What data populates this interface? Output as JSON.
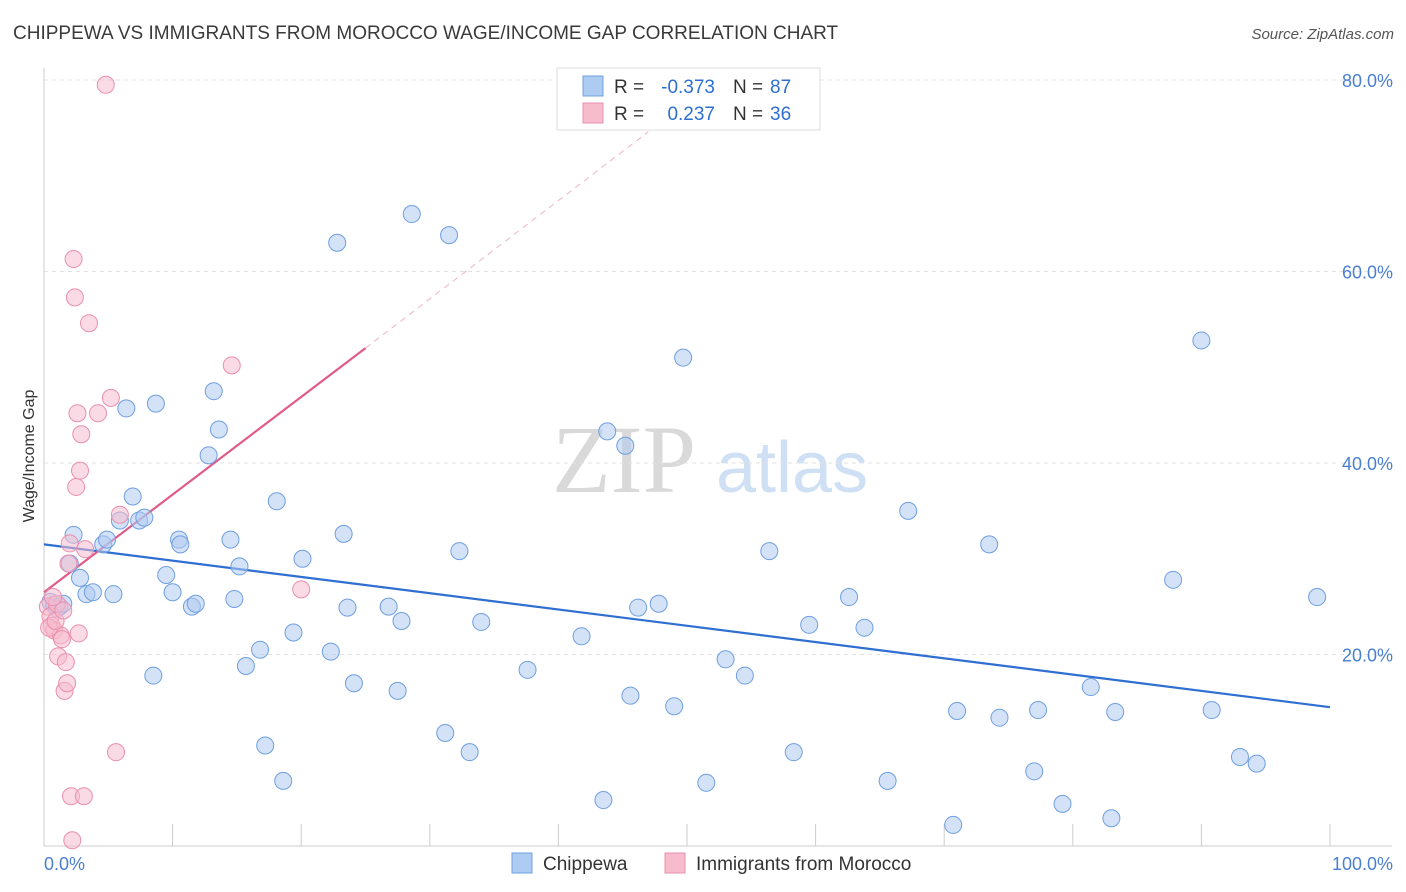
{
  "title": "CHIPPEWA VS IMMIGRANTS FROM MOROCCO WAGE/INCOME GAP CORRELATION CHART",
  "source": "Source: ZipAtlas.com",
  "watermark": {
    "zip": "ZIP",
    "atlas": "atlas"
  },
  "legend_box": {
    "rows": [
      {
        "r_label": "R =",
        "r_value": "-0.373",
        "n_label": "N =",
        "n_value": "87",
        "color": "#aecbf1"
      },
      {
        "r_label": "R =",
        "r_value": "0.237",
        "n_label": "N =",
        "n_value": "36",
        "color": "#f6bccd"
      }
    ]
  },
  "chart_data": {
    "type": "scatter",
    "title": "CHIPPEWA VS IMMIGRANTS FROM MOROCCO WAGE/INCOME GAP CORRELATION CHART",
    "xlabel": "",
    "ylabel": "Wage/Income Gap",
    "xlim": [
      0,
      100
    ],
    "ylim": [
      0,
      80
    ],
    "x_tick_labels": [
      "0.0%",
      "100.0%"
    ],
    "y_ticks": [
      20,
      40,
      60,
      80
    ],
    "y_tick_labels": [
      "20.0%",
      "40.0%",
      "60.0%",
      "80.0%"
    ],
    "grid": true,
    "legend_position": "bottom-center",
    "series": [
      {
        "name": "Chippewa",
        "color": "#aecbf1",
        "edge": "#6f9fe0",
        "trend_color": "#2e6fd1",
        "trend": {
          "x0": 0,
          "y0": 31.5,
          "x1": 100,
          "y1": 14.5
        },
        "points": [
          [
            0.5,
            25.5
          ],
          [
            0.8,
            25.2
          ],
          [
            1.0,
            24.8
          ],
          [
            1.2,
            25.0
          ],
          [
            1.5,
            25.3
          ],
          [
            2.0,
            29.5
          ],
          [
            2.3,
            32.5
          ],
          [
            2.8,
            28.0
          ],
          [
            3.3,
            26.3
          ],
          [
            3.8,
            26.5
          ],
          [
            4.6,
            31.5
          ],
          [
            4.9,
            32.0
          ],
          [
            5.4,
            26.3
          ],
          [
            5.9,
            34.0
          ],
          [
            6.4,
            45.7
          ],
          [
            6.9,
            36.5
          ],
          [
            7.4,
            34.0
          ],
          [
            7.8,
            34.3
          ],
          [
            8.5,
            17.8
          ],
          [
            8.7,
            46.2
          ],
          [
            9.5,
            28.3
          ],
          [
            10.0,
            26.5
          ],
          [
            10.5,
            32.0
          ],
          [
            10.6,
            31.5
          ],
          [
            11.5,
            25.0
          ],
          [
            11.8,
            25.3
          ],
          [
            12.8,
            40.8
          ],
          [
            13.2,
            47.5
          ],
          [
            13.6,
            43.5
          ],
          [
            14.5,
            32.0
          ],
          [
            14.8,
            25.8
          ],
          [
            15.2,
            29.2
          ],
          [
            15.7,
            18.8
          ],
          [
            16.8,
            20.5
          ],
          [
            17.2,
            10.5
          ],
          [
            18.1,
            36.0
          ],
          [
            18.6,
            6.8
          ],
          [
            19.4,
            22.3
          ],
          [
            20.1,
            30.0
          ],
          [
            22.3,
            20.3
          ],
          [
            22.8,
            63.0
          ],
          [
            23.3,
            32.6
          ],
          [
            23.6,
            24.9
          ],
          [
            24.1,
            17.0
          ],
          [
            26.8,
            25.0
          ],
          [
            27.5,
            16.2
          ],
          [
            27.8,
            23.5
          ],
          [
            28.6,
            66.0
          ],
          [
            31.2,
            11.8
          ],
          [
            31.5,
            63.8
          ],
          [
            32.3,
            30.8
          ],
          [
            33.1,
            9.8
          ],
          [
            34.0,
            23.4
          ],
          [
            37.6,
            18.4
          ],
          [
            41.8,
            21.9
          ],
          [
            43.5,
            4.8
          ],
          [
            43.8,
            43.3
          ],
          [
            45.2,
            41.8
          ],
          [
            45.6,
            15.7
          ],
          [
            46.2,
            24.9
          ],
          [
            47.8,
            25.3
          ],
          [
            49.0,
            14.6
          ],
          [
            49.7,
            51.0
          ],
          [
            51.5,
            6.6
          ],
          [
            53.0,
            19.5
          ],
          [
            54.5,
            17.8
          ],
          [
            56.4,
            30.8
          ],
          [
            58.3,
            9.8
          ],
          [
            59.5,
            23.1
          ],
          [
            62.6,
            26.0
          ],
          [
            63.8,
            22.8
          ],
          [
            65.6,
            6.8
          ],
          [
            67.2,
            35.0
          ],
          [
            70.7,
            2.2
          ],
          [
            71.0,
            14.1
          ],
          [
            73.5,
            31.5
          ],
          [
            74.3,
            13.4
          ],
          [
            77.0,
            7.8
          ],
          [
            77.3,
            14.2
          ],
          [
            79.2,
            4.4
          ],
          [
            81.4,
            16.6
          ],
          [
            83.0,
            2.9
          ],
          [
            83.3,
            14.0
          ],
          [
            87.8,
            27.8
          ],
          [
            90.0,
            52.8
          ],
          [
            90.8,
            14.2
          ],
          [
            93.0,
            9.3
          ],
          [
            94.3,
            8.6
          ],
          [
            99.0,
            26.0
          ]
        ]
      },
      {
        "name": "Immigrants from Morocco",
        "color": "#f6bccd",
        "edge": "#ea8fae",
        "trend_color": "#e05a8a",
        "trend": {
          "x0": 0,
          "y0": 26.5,
          "x1": 25,
          "y1": 52.0
        },
        "trend_dash": {
          "x0": 25,
          "y0": 52.0,
          "x1": 47,
          "y1": 74.6
        },
        "points": [
          [
            0.3,
            25.0
          ],
          [
            0.5,
            24.0
          ],
          [
            0.6,
            23.0
          ],
          [
            0.8,
            22.5
          ],
          [
            1.0,
            25.3
          ],
          [
            1.1,
            19.8
          ],
          [
            1.3,
            22.0
          ],
          [
            1.4,
            21.6
          ],
          [
            1.6,
            16.2
          ],
          [
            1.7,
            19.2
          ],
          [
            1.8,
            17.0
          ],
          [
            1.9,
            29.5
          ],
          [
            2.0,
            31.6
          ],
          [
            2.1,
            5.2
          ],
          [
            2.2,
            0.6
          ],
          [
            2.3,
            61.3
          ],
          [
            2.4,
            57.3
          ],
          [
            2.5,
            37.5
          ],
          [
            2.6,
            45.2
          ],
          [
            2.7,
            22.2
          ],
          [
            2.8,
            39.2
          ],
          [
            2.9,
            43.0
          ],
          [
            3.1,
            5.2
          ],
          [
            3.2,
            31.0
          ],
          [
            3.5,
            54.6
          ],
          [
            4.2,
            45.2
          ],
          [
            5.2,
            46.8
          ],
          [
            5.6,
            9.8
          ],
          [
            5.9,
            34.6
          ],
          [
            4.8,
            79.5
          ],
          [
            14.6,
            50.2
          ],
          [
            20.0,
            26.8
          ],
          [
            0.4,
            22.8
          ],
          [
            0.9,
            23.5
          ],
          [
            1.5,
            24.6
          ],
          [
            0.7,
            26.0
          ]
        ]
      }
    ]
  }
}
